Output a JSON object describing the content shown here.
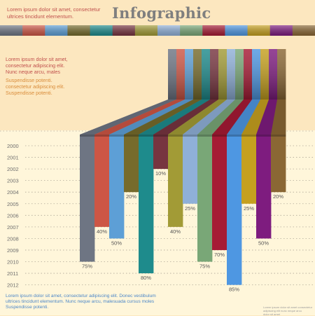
{
  "header": {
    "title": "Infographic",
    "lines": [
      "Lorem ipsum dolor sit amet, consectetur",
      "ultrices tincidunt elementum."
    ]
  },
  "side_text": {
    "red_lines": [
      "Lorem ipsum dolor sit amet,",
      "consectetur adipiscing elit.",
      "Nunc neque arcu, males"
    ],
    "orange_lines": [
      "Suspendisse potenti.",
      "consectetur adipiscing elit.",
      "Suspendisse potenti."
    ]
  },
  "footer": {
    "lines": [
      "Lorem ipsum dolor sit amet, consectetur adipiscing elit. Donec vestibulum",
      "ultrices tincidunt elementum. Nunc neque arcu, malesuada cursus moles",
      "Suspendisse potenti."
    ],
    "small_lines": [
      "Lorem ipsum dolor sit amet consectetur",
      "adipiscing elit nunc neque arcu",
      "dolor sit amet"
    ]
  },
  "colors": {
    "background_top": "#fce7bf",
    "background_bottom": "#fff6da",
    "grid": "#b0a898"
  },
  "chart_data": {
    "type": "bar",
    "title": "Infographic",
    "xlabel": "",
    "ylabel": "",
    "y_categories": [
      "2000",
      "2001",
      "2002",
      "2003",
      "2004",
      "2005",
      "2006",
      "2007",
      "2008",
      "2009",
      "2010",
      "2011",
      "2012"
    ],
    "series": [
      {
        "color": "#6e7583",
        "end_year": 2010,
        "value_label": "75%"
      },
      {
        "color": "#cd5645",
        "end_year": 2007,
        "value_label": "40%"
      },
      {
        "color": "#5d9fd6",
        "end_year": 2008,
        "value_label": "50%"
      },
      {
        "color": "#766b2c",
        "end_year": 2004,
        "value_label": "20%"
      },
      {
        "color": "#1e8b8c",
        "end_year": 2011,
        "value_label": "80%"
      },
      {
        "color": "#773540",
        "end_year": 2002,
        "value_label": "10%"
      },
      {
        "color": "#a29b36",
        "end_year": 2007,
        "value_label": "40%"
      },
      {
        "color": "#8fb0d8",
        "end_year": 2005,
        "value_label": "25%"
      },
      {
        "color": "#79a777",
        "end_year": 2010,
        "value_label": "75%"
      },
      {
        "color": "#a61b35",
        "end_year": 2009,
        "value_label": "70%"
      },
      {
        "color": "#4e97e2",
        "end_year": 2012,
        "value_label": "85%"
      },
      {
        "color": "#c5a01f",
        "end_year": 2005,
        "value_label": "25%"
      },
      {
        "color": "#7e1c7f",
        "end_year": 2008,
        "value_label": "50%"
      },
      {
        "color": "#8a6734",
        "end_year": 2004,
        "value_label": "20%"
      }
    ],
    "grid": true
  }
}
